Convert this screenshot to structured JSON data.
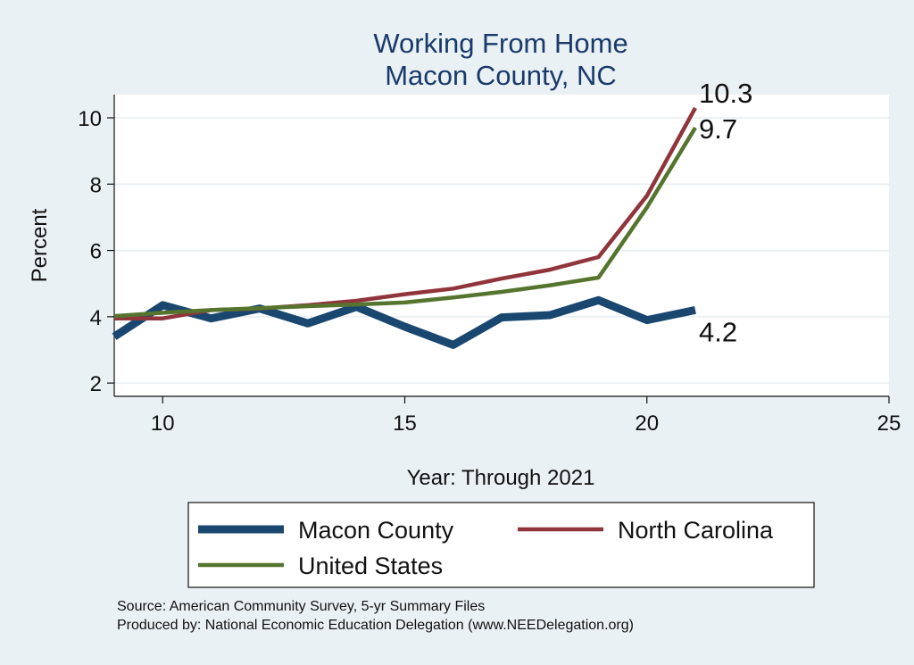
{
  "chart_data": {
    "type": "line",
    "title": "Working From Home",
    "subtitle": "Macon County, NC",
    "xlabel": "Year: Through 2021",
    "ylabel": "Percent",
    "xlim": [
      9,
      25
    ],
    "ylim": [
      1.6,
      10.7
    ],
    "x_ticks": [
      10,
      15,
      20,
      25
    ],
    "y_ticks": [
      2,
      4,
      6,
      8,
      10
    ],
    "grid": true,
    "legend_position": "bottom",
    "series": [
      {
        "name": "Macon County",
        "color": "#1a476f",
        "x": [
          9,
          10,
          11,
          12,
          13,
          14,
          15,
          16,
          17,
          18,
          19,
          20,
          21
        ],
        "y": [
          3.4,
          4.35,
          3.95,
          4.25,
          3.8,
          4.3,
          3.7,
          3.15,
          3.98,
          4.05,
          4.5,
          3.9,
          4.2
        ],
        "end_label": "4.2"
      },
      {
        "name": "North Carolina",
        "color": "#90353b",
        "x": [
          9,
          10,
          11,
          12,
          13,
          14,
          15,
          16,
          17,
          18,
          19,
          20,
          21
        ],
        "y": [
          3.95,
          3.95,
          4.2,
          4.25,
          4.35,
          4.48,
          4.68,
          4.85,
          5.15,
          5.42,
          5.8,
          7.65,
          10.3
        ],
        "end_label": "10.3"
      },
      {
        "name": "United States",
        "color": "#55752f",
        "x": [
          9,
          10,
          11,
          12,
          13,
          14,
          15,
          16,
          17,
          18,
          19,
          20,
          21
        ],
        "y": [
          4.02,
          4.12,
          4.2,
          4.26,
          4.32,
          4.37,
          4.43,
          4.58,
          4.75,
          4.95,
          5.18,
          7.3,
          9.7
        ],
        "end_label": "9.7"
      }
    ],
    "notes": [
      "Source: American Community Survey, 5-yr Summary Files",
      "Produced by: National Economic Education Delegation (www.NEEDelegation.org)"
    ]
  }
}
